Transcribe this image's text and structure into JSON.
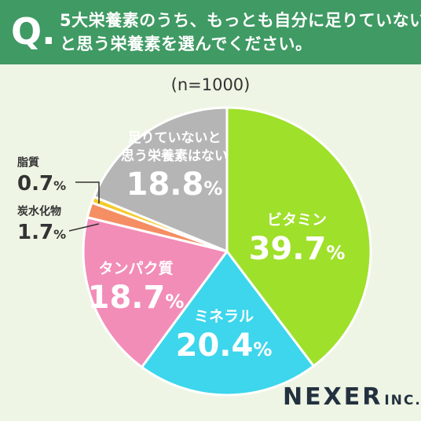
{
  "header": {
    "q_mark": "Q.",
    "question_line1": "5大栄養素のうち、もっとも自分に足りていない",
    "question_line2": "と思う栄養素を選んでください。"
  },
  "sample_size": "(n=1000)",
  "brand": {
    "name": "NEXER",
    "suffix": "INC."
  },
  "colors": {
    "header_bg": "#3f9a63",
    "page_bg": "#eef5e4",
    "vitamin": "#9fe02a",
    "mineral": "#3dd6ec",
    "protein": "#f28db8",
    "carbohydrate": "#f58e63",
    "lipid": "#f4cb2a",
    "none": "#b5b5b5"
  },
  "chart_data": {
    "type": "pie",
    "title": "5大栄養素のうち、もっとも自分に足りていないと思う栄養素を選んでください。",
    "categories": [
      "ビタミン",
      "ミネラル",
      "タンパク質",
      "炭水化物",
      "脂質",
      "足りていないと思う栄養素はない"
    ],
    "values": [
      39.7,
      20.4,
      18.7,
      1.7,
      0.7,
      18.8
    ],
    "value_labels": [
      "39.7",
      "20.4",
      "18.7",
      "1.7",
      "0.7",
      "18.8"
    ],
    "unit": "%",
    "label_lines": [
      [
        "ビタミン"
      ],
      [
        "ミネラル"
      ],
      [
        "タンパク質"
      ],
      [
        "炭水化物"
      ],
      [
        "脂質"
      ],
      [
        "足りていないと",
        "思う栄養素はない"
      ]
    ],
    "colors": [
      "#9fe02a",
      "#3dd6ec",
      "#f28db8",
      "#f58e63",
      "#f4cb2a",
      "#b5b5b5"
    ],
    "start": "12 o'clock",
    "direction": "clockwise"
  }
}
